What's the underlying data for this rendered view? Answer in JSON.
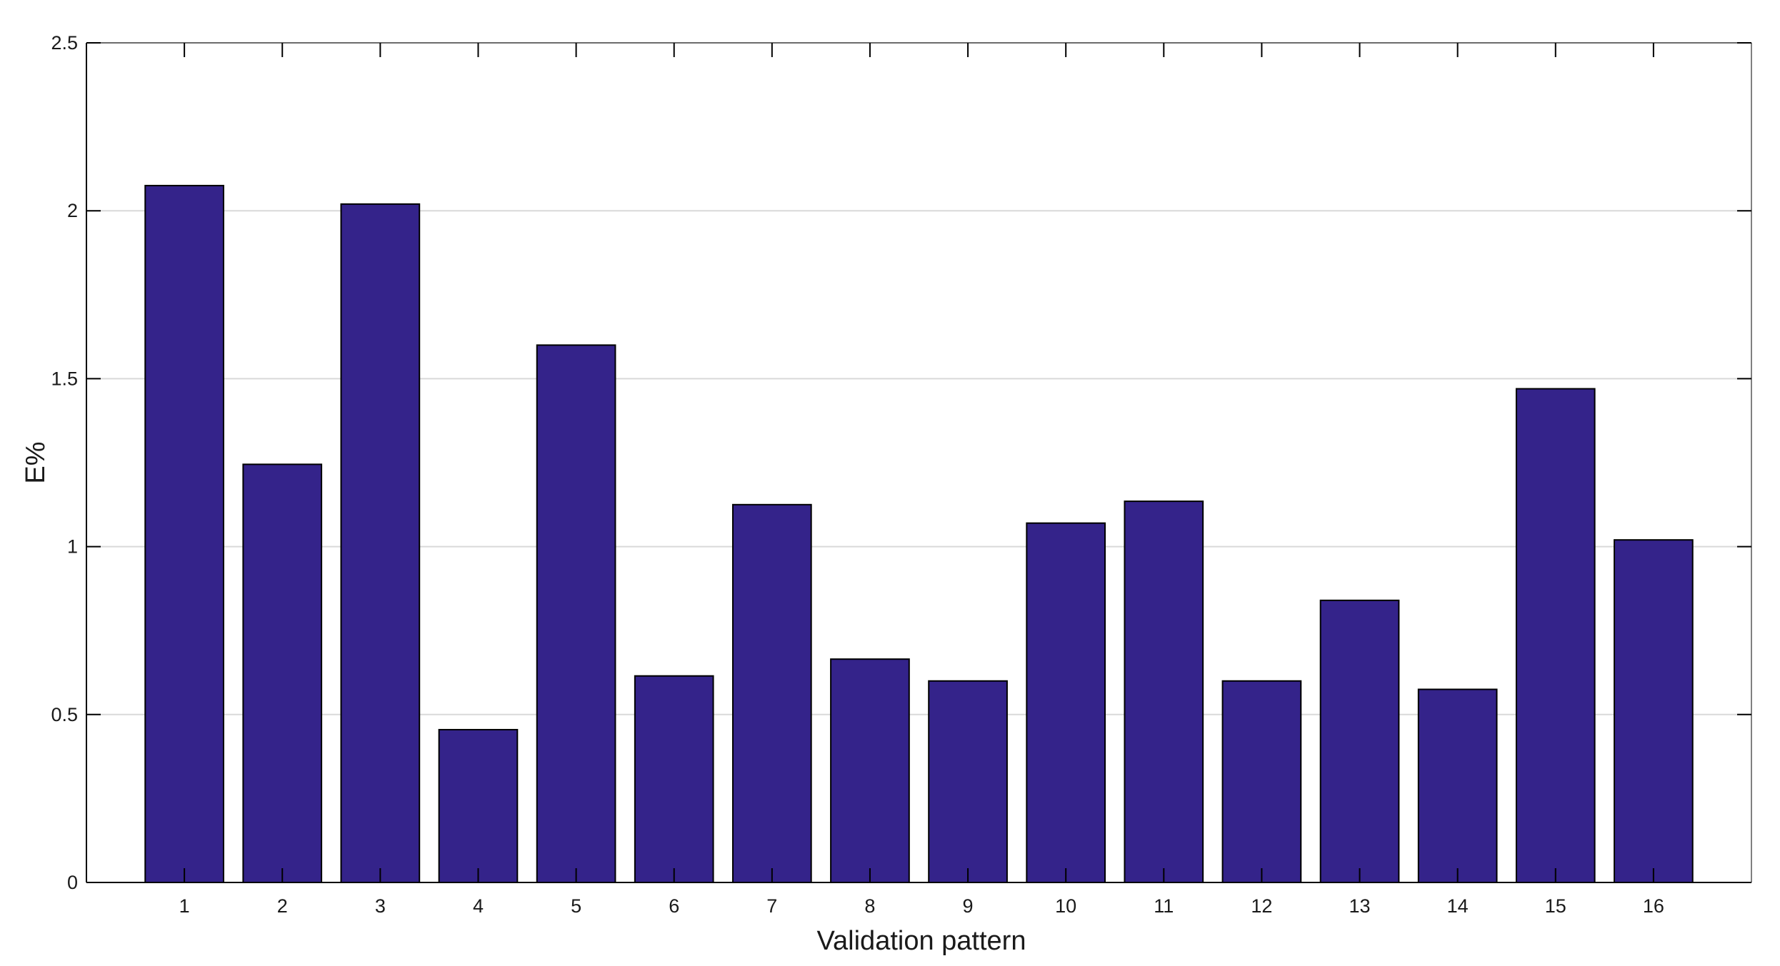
{
  "chart_data": {
    "type": "bar",
    "title": "",
    "xlabel": "Validation pattern",
    "ylabel": "E%",
    "categories": [
      "1",
      "2",
      "3",
      "4",
      "5",
      "6",
      "7",
      "8",
      "9",
      "10",
      "11",
      "12",
      "13",
      "14",
      "15",
      "16"
    ],
    "values": [
      2.075,
      1.245,
      2.02,
      0.455,
      1.6,
      0.615,
      1.125,
      0.665,
      0.6,
      1.07,
      1.135,
      0.6,
      0.84,
      0.575,
      1.47,
      1.02
    ],
    "ylim": [
      0,
      2.5
    ],
    "yticks": [
      0,
      0.5,
      1,
      1.5,
      2,
      2.5
    ],
    "ytick_labels": [
      "0",
      "0.5",
      "1",
      "1.5",
      "2",
      "2.5"
    ],
    "grid": true,
    "legend": "none",
    "colors": {
      "bar_fill": "#34238a",
      "bar_edge": "#000000",
      "grid": "#d9d9d9",
      "axis": "#000000"
    }
  }
}
